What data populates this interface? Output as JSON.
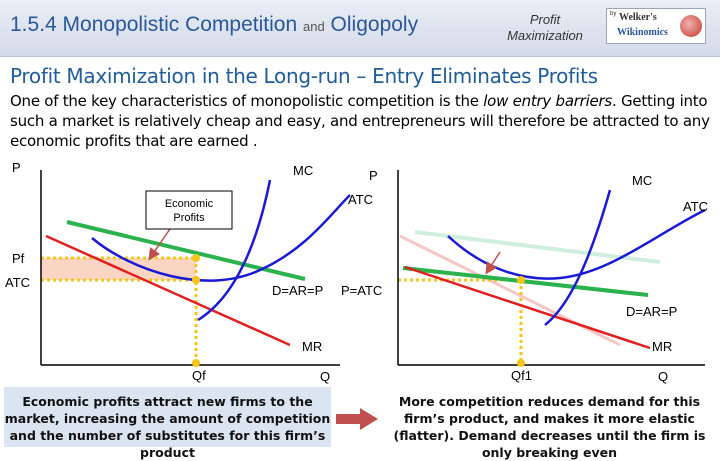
{
  "header": {
    "title_main": "1.5.4 Monopolistic Competition",
    "title_and": "and",
    "title_oligopoly": "Oligopoly",
    "subtitle": "Profit Maximization",
    "logo_by": "by",
    "logo_line1": "Welker's",
    "logo_line2": "Wikinomics"
  },
  "slide": {
    "title": "Profit Maximization in the Long-run – Entry Eliminates Profits",
    "intro_part1": "One of the key characteristics of monopolistic competition is the ",
    "intro_emph": "low entry barriers",
    "intro_part2": ". Getting into such a market is relatively cheap and easy, and entrepreneurs will therefore be attracted to any economic profits that are earned ."
  },
  "left_graph": {
    "y_axis_label": "P",
    "mc_label": "MC",
    "atc_label": "ATC",
    "profits_label_line1": "Economic",
    "profits_label_line2": "Profits",
    "pf_label": "Pf",
    "atc_level_label": "ATC",
    "demand_label": "D=AR=P",
    "mr_label": "MR",
    "qf_label": "Qf",
    "x_axis_label": "Q"
  },
  "right_graph": {
    "y_axis_label": "P",
    "mc_label": "MC",
    "atc_label": "ATC",
    "p_atc_label": "P=ATC",
    "demand_label": "D=AR=P",
    "mr_label": "MR",
    "qf_label": "Qf1",
    "x_axis_label": "Q"
  },
  "captions": {
    "left": "Economic profits attract new firms to the market, increasing the amount of competition and the number of substitutes for this firm’s product",
    "right": "More competition reduces demand for this firm’s product, and makes it more elastic (flatter). Demand decreases until the firm is only breaking even"
  },
  "colors": {
    "header_title": "#2b579a",
    "mc_curve": "#1a1ad6",
    "atc_curve": "#1a1ad6",
    "demand": "#2bb24c",
    "mr": "#e02020",
    "profit_area": "#fbd5c3",
    "marker": "#f5c518",
    "old_demand": "#cfeede",
    "old_mr": "#f6c6c6",
    "arrow": "#c0504d"
  }
}
